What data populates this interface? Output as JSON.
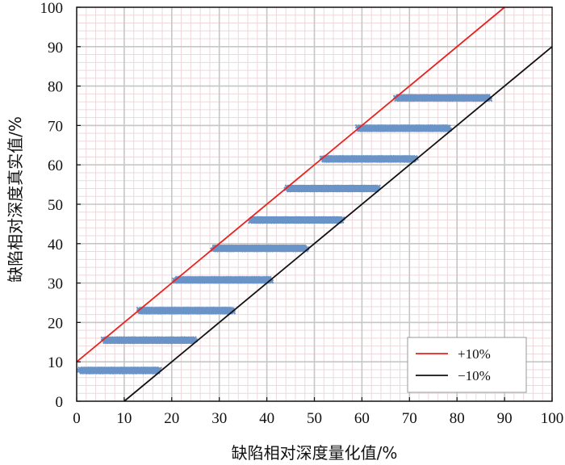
{
  "chart_data": {
    "type": "scatter",
    "xlabel": "缺陷相对深度量化值/%",
    "ylabel": "缺陷相对深度真实值/%",
    "xlim": [
      0,
      100
    ],
    "ylim": [
      0,
      100
    ],
    "xticks": [
      "0",
      "10",
      "20",
      "30",
      "40",
      "50",
      "60",
      "70",
      "80",
      "90",
      "100"
    ],
    "yticks": [
      "0",
      "10",
      "20",
      "30",
      "40",
      "50",
      "60",
      "70",
      "80",
      "90",
      "100"
    ],
    "grid": true,
    "legend_position": "bottom-right",
    "colors": {
      "points": "#6a93c8",
      "plus_line": "#e8231f",
      "minus_line": "#111111"
    },
    "lines": [
      {
        "name": "+10%",
        "x": [
          0,
          90
        ],
        "y": [
          10,
          100
        ]
      },
      {
        "name": "−10%",
        "x": [
          10,
          100
        ],
        "y": [
          0,
          90
        ]
      }
    ],
    "series": [
      {
        "y": 7.8,
        "x_range": [
          0.5,
          17.5
        ]
      },
      {
        "y": 15.5,
        "x_range": [
          5.5,
          25.0
        ]
      },
      {
        "y": 23.0,
        "x_range": [
          13.0,
          33.0
        ]
      },
      {
        "y": 30.8,
        "x_range": [
          20.5,
          41.0
        ]
      },
      {
        "y": 38.8,
        "x_range": [
          28.5,
          48.5
        ]
      },
      {
        "y": 46.0,
        "x_range": [
          36.5,
          56.0
        ]
      },
      {
        "y": 54.0,
        "x_range": [
          44.0,
          63.5
        ]
      },
      {
        "y": 61.5,
        "x_range": [
          51.5,
          71.5
        ]
      },
      {
        "y": 69.3,
        "x_range": [
          59.0,
          78.5
        ]
      },
      {
        "y": 77.0,
        "x_range": [
          67.0,
          87.0
        ]
      }
    ]
  }
}
